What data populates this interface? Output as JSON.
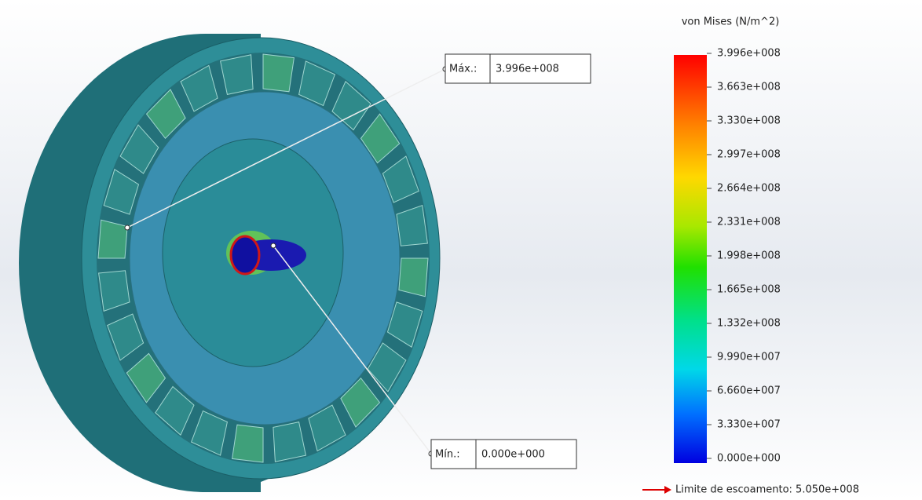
{
  "legend": {
    "title": "von Mises (N/m^2)",
    "labels": [
      "3.996e+008",
      "3.663e+008",
      "3.330e+008",
      "2.997e+008",
      "2.664e+008",
      "2.331e+008",
      "1.998e+008",
      "1.665e+008",
      "1.332e+008",
      "9.990e+007",
      "6.660e+007",
      "3.330e+007",
      "0.000e+000"
    ]
  },
  "max_probe": {
    "label": "Máx.:",
    "value": "3.996e+008"
  },
  "min_probe": {
    "label": "Mín.:",
    "value": "0.000e+000"
  },
  "yield_limit": "Limite de escoamento: 5.050e+008"
}
